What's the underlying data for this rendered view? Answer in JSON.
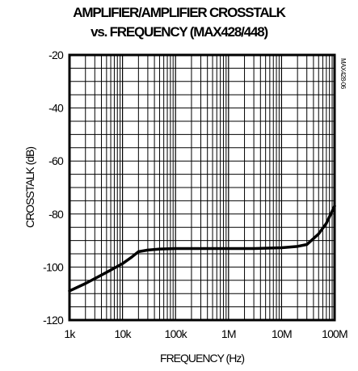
{
  "chart_data": {
    "type": "line",
    "title": "AMPLIFIER/AMPLIFIER CROSSTALK",
    "subtitle": "vs. FREQUENCY (MAX428/448)",
    "xlabel": "FREQUENCY (Hz)",
    "ylabel": "CROSSTALK (dB)",
    "figure_code": "MAX428-06",
    "x_scale": "log",
    "xlim": [
      1000,
      100000000
    ],
    "ylim": [
      -120,
      -20
    ],
    "x_ticks": [
      {
        "value": 1000,
        "label": "1k"
      },
      {
        "value": 10000,
        "label": "10k"
      },
      {
        "value": 100000,
        "label": "100k"
      },
      {
        "value": 1000000,
        "label": "1M"
      },
      {
        "value": 10000000,
        "label": "10M"
      },
      {
        "value": 100000000,
        "label": "100M"
      }
    ],
    "y_ticks": [
      {
        "value": -20,
        "label": "-20"
      },
      {
        "value": -40,
        "label": "-40"
      },
      {
        "value": -60,
        "label": "-60"
      },
      {
        "value": -80,
        "label": "-80"
      },
      {
        "value": -100,
        "label": "-100"
      },
      {
        "value": -120,
        "label": "-120"
      }
    ],
    "grid": true,
    "series": [
      {
        "color": "#000000",
        "x": [
          1000,
          2000,
          5000,
          10000,
          15000,
          20000,
          30000,
          50000,
          100000,
          200000,
          500000,
          1000000,
          3000000,
          10000000,
          20000000,
          30000000,
          50000000,
          70000000,
          100000000
        ],
        "y": [
          -109,
          -106.2,
          -102,
          -98.7,
          -96.2,
          -94.2,
          -93.6,
          -93.2,
          -93,
          -93,
          -93,
          -93,
          -93,
          -92.7,
          -92.2,
          -91.5,
          -87.5,
          -83.5,
          -77
        ]
      }
    ]
  }
}
